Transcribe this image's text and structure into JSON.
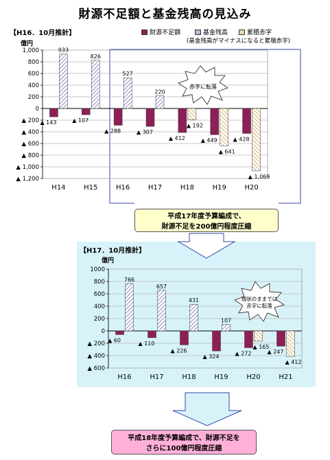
{
  "title": "財源不足額と基金残高の見込み",
  "legend": {
    "deficit": "財源不足額",
    "balance": "基金残高",
    "cumulative": "累積赤字",
    "note": "(基金残高がマイナスになると累積赤字)"
  },
  "colors": {
    "deficit": "#8e1f55",
    "balance": "#5b5ba6",
    "cumulative": "#c9a045",
    "panel2_bg": "#d7f3f9",
    "callout1_bg": "#ffffcc",
    "callout2_bg": "#ffb0d8"
  },
  "callout1": {
    "line1": "平成17年度予算編成で、",
    "line2": "財源不足を200億円程度圧縮"
  },
  "callout2": {
    "line1": "平成18年度予算編成で、財源不足を",
    "line2": "さらに100億円程度圧縮"
  },
  "chart_data": [
    {
      "type": "bar",
      "header": "【H16．10月推計】",
      "unit_label": "億円",
      "categories": [
        "H14",
        "H15",
        "H16",
        "H17",
        "H18",
        "H19",
        "H20"
      ],
      "series": [
        {
          "name": "財源不足額",
          "values": [
            -143,
            -107,
            -288,
            -307,
            -412,
            -449,
            -428
          ],
          "labels": [
            "▲ 143",
            "▲ 107",
            "▲ 288",
            "▲ 307",
            "▲ 412",
            "▲ 449",
            "▲ 428"
          ]
        },
        {
          "name": "基金残高",
          "values": [
            933,
            826,
            527,
            220,
            null,
            null,
            null
          ],
          "labels": [
            "933",
            "826",
            "527",
            "220",
            "",
            "",
            ""
          ]
        },
        {
          "name": "累積赤字",
          "values": [
            null,
            null,
            null,
            null,
            -192,
            -641,
            -1069
          ],
          "labels": [
            "",
            "",
            "",
            "",
            "▲ 192",
            "▲ 641",
            "▲ 1,069"
          ]
        }
      ],
      "ylim": [
        -1200,
        1000
      ],
      "yticks": [
        1000,
        800,
        600,
        400,
        200,
        0,
        -200,
        -400,
        -600,
        -800,
        -1000,
        -1200
      ],
      "ytick_labels": [
        "1,000",
        "800",
        "600",
        "400",
        "200",
        "0",
        "▲ 200",
        "▲ 400",
        "▲ 600",
        "▲ 800",
        "▲ 1,000",
        "▲ 1,200"
      ],
      "annotation": "赤字に転落",
      "grid": true
    },
    {
      "type": "bar",
      "header": "【H17．10月推計】",
      "unit_label": "億円",
      "categories": [
        "H16",
        "H17",
        "H18",
        "H19",
        "H20",
        "H21"
      ],
      "series": [
        {
          "name": "財源不足額",
          "values": [
            -60,
            -110,
            -226,
            -324,
            -272,
            -247
          ],
          "labels": [
            "▲ 60",
            "▲ 110",
            "▲ 226",
            "▲ 324",
            "▲ 272",
            "▲ 247"
          ]
        },
        {
          "name": "基金残高",
          "values": [
            766,
            657,
            431,
            107,
            null,
            null
          ],
          "labels": [
            "766",
            "657",
            "431",
            "107",
            "",
            ""
          ]
        },
        {
          "name": "累積赤字",
          "values": [
            null,
            null,
            null,
            null,
            -165,
            -412
          ],
          "labels": [
            "",
            "",
            "",
            "",
            "▲ 165",
            "▲ 412"
          ]
        }
      ],
      "ylim": [
        -600,
        1000
      ],
      "yticks": [
        1000,
        800,
        600,
        400,
        200,
        0,
        -200,
        -400,
        -600
      ],
      "ytick_labels": [
        "1000",
        "800",
        "600",
        "400",
        "200",
        "0",
        "▲ 200",
        "▲ 400",
        "▲ 600"
      ],
      "annotation_line1": "現状のままでは",
      "annotation_line2": "赤字に転落",
      "grid": true
    }
  ]
}
